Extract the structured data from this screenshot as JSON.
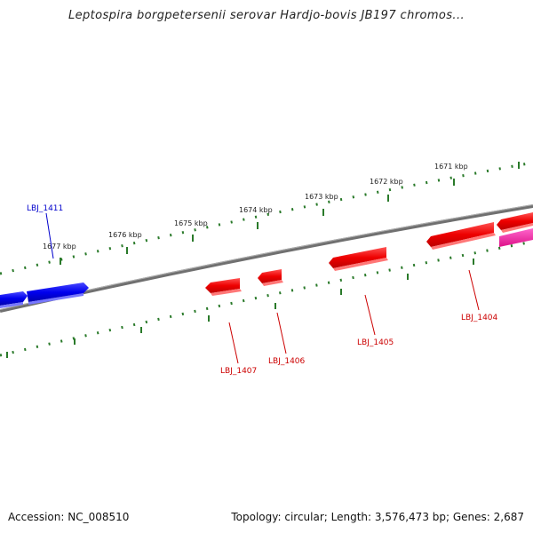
{
  "title": "Leptospira borgpetersenii serovar Hardjo-bovis JB197 chromos...",
  "footer": {
    "accession": "Accession: NC_008510",
    "summary": "Topology: circular; Length: 3,576,473 bp; Genes: 2,687"
  },
  "kbp_labels": [
    "1677 kbp",
    "1676 kbp",
    "1675 kbp",
    "1674 kbp",
    "1673 kbp",
    "1672 kbp",
    "1671 kbp"
  ],
  "genes": [
    {
      "label": "LBJ_1411",
      "color": "#0000cc",
      "strand": "forward"
    },
    {
      "label": "LBJ_1407",
      "color": "#cc0000",
      "strand": "reverse"
    },
    {
      "label": "LBJ_1406",
      "color": "#cc0000",
      "strand": "reverse"
    },
    {
      "label": "LBJ_1405",
      "color": "#cc0000",
      "strand": "reverse"
    },
    {
      "label": "LBJ_1404",
      "color": "#cc0000",
      "strand": "reverse"
    }
  ],
  "colors": {
    "forward_gene": "#0000ff",
    "reverse_gene": "#ff0000",
    "other_gene": "#ff33aa",
    "tick": "#2a7a2a",
    "backbone": "#808080"
  }
}
